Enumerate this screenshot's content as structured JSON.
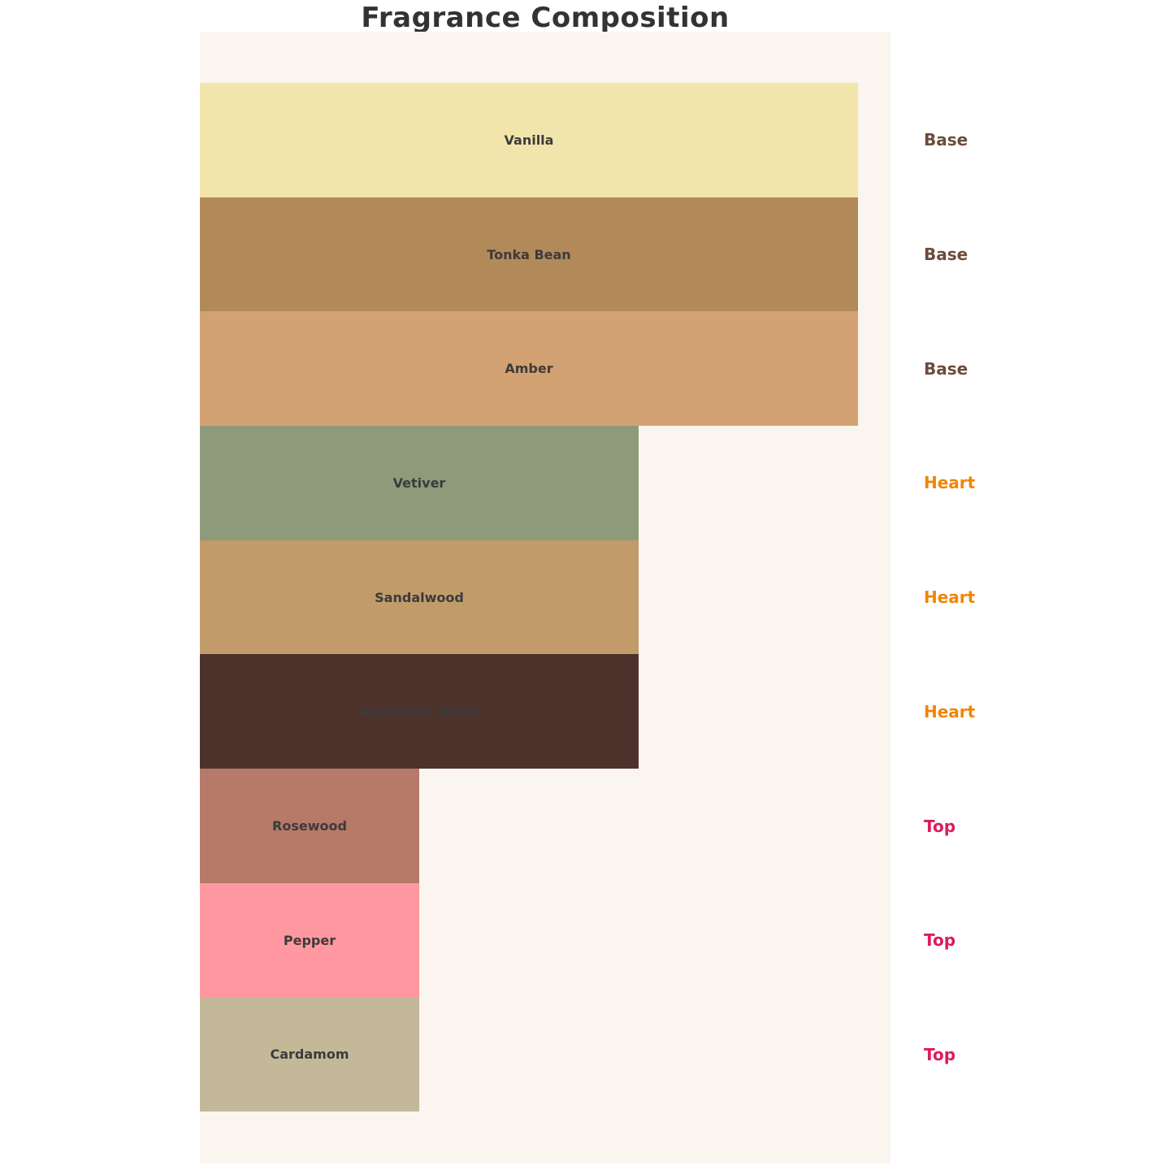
{
  "title": "Fragrance Composition",
  "colors": {
    "page_bg": "#FFFFFF",
    "panel_bg": "#FAF5EE",
    "title_text": "#333333",
    "bar_label_text": "#3B3B3B",
    "group_label_colors": {
      "Base": "#6D4B3B",
      "Heart": "#F28500",
      "Top": "#DE1A60"
    }
  },
  "chart_data": {
    "type": "bar",
    "orientation": "horizontal",
    "title": "Fragrance Composition",
    "categories": [
      "Vanilla",
      "Tonka Bean",
      "Amber",
      "Vetiver",
      "Sandalwood",
      "Agarwood (Oud)",
      "Rosewood",
      "Pepper",
      "Cardamom"
    ],
    "values": [
      3,
      3,
      3,
      2,
      2,
      2,
      1,
      1,
      1
    ],
    "groups": [
      "Base",
      "Base",
      "Base",
      "Heart",
      "Heart",
      "Heart",
      "Top",
      "Top",
      "Top"
    ],
    "bar_colors": [
      "#F2E5AB",
      "#B28A59",
      "#D3A273",
      "#8D9B7B",
      "#C19B6A",
      "#4D322C",
      "#B77968",
      "#FF98A0",
      "#C3B897"
    ],
    "xlabel": "",
    "ylabel": "",
    "xlim": [
      0,
      3.15
    ],
    "grid": false,
    "legend_position": "none",
    "value_labels_inside_bars": true,
    "group_labels_right_side": true
  }
}
